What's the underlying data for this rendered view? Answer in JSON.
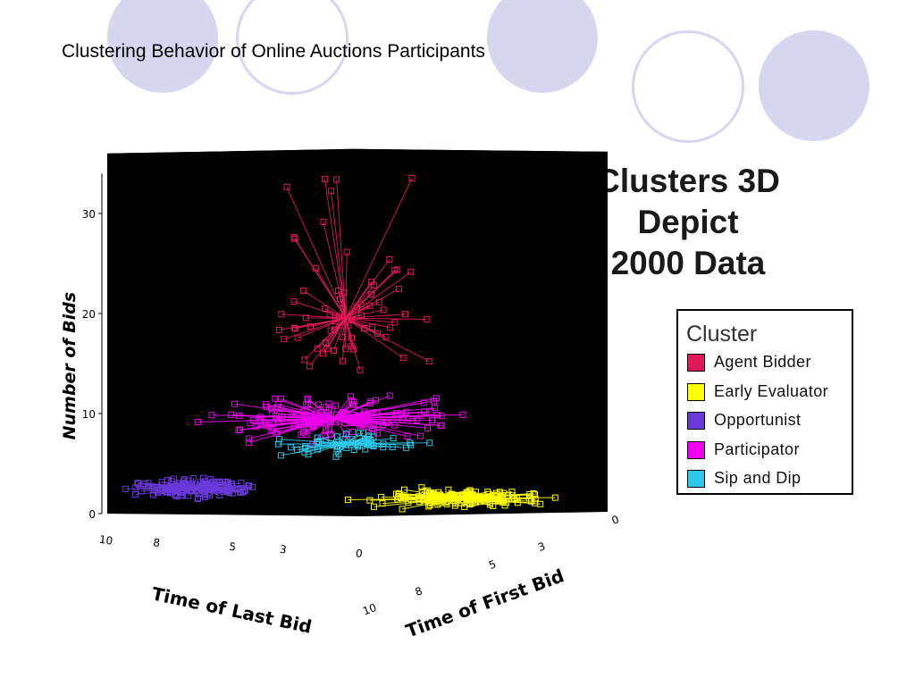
{
  "slide": {
    "title": "Clustering Behavior of Online Auctions Participants",
    "side_title_lines": [
      "Clusters 3D",
      "Depict",
      "2000 Data"
    ]
  },
  "legend": {
    "title": "Cluster",
    "items": [
      {
        "label": "Agent Bidder",
        "color": "#e0195a"
      },
      {
        "label": "Early Evaluator",
        "color": "#ffff00"
      },
      {
        "label": "Opportunist",
        "color": "#6a3ad9"
      },
      {
        "label": "Participator",
        "color": "#ee00ee"
      },
      {
        "label": "Sip and Dip",
        "color": "#2ec8e8"
      }
    ]
  },
  "chart_data": {
    "type": "scatter",
    "subtype": "3d-scatter-with-centroid-spikes",
    "ylabel": "Number of Bids",
    "xlabel": "Time of Last Bid",
    "zlabel": "Time of First Bid",
    "y_ticks": [
      "0",
      "10",
      "20",
      "30"
    ],
    "x_ticks": [
      "10",
      "8",
      "5",
      "3",
      "0"
    ],
    "z_ticks": [
      "10",
      "8",
      "5",
      "3",
      "0"
    ],
    "ylim": [
      0,
      35
    ],
    "xlim": [
      0,
      10
    ],
    "zlim": [
      0,
      10
    ],
    "background": "#000000",
    "legend_title": "Cluster",
    "legend_position": "right",
    "series": [
      {
        "name": "Agent Bidder",
        "color": "#e0195a",
        "centroid": {
          "last": 4.5,
          "first": 6.0,
          "bids": 19.5
        },
        "points": 70
      },
      {
        "name": "Participator",
        "color": "#ee00ee",
        "centroid": {
          "last": 4.5,
          "first": 6.5,
          "bids": 9.5
        },
        "points": 150
      },
      {
        "name": "Sip and Dip",
        "color": "#2ec8e8",
        "centroid": {
          "last": 4.0,
          "first": 6.5,
          "bids": 7.0
        },
        "points": 60
      },
      {
        "name": "Opportunist",
        "color": "#6a3ad9",
        "centroid": {
          "last": 8.0,
          "first": 8.5,
          "bids": 2.5
        },
        "points": 140
      },
      {
        "name": "Early Evaluator",
        "color": "#ffff00",
        "centroid": {
          "last": 2.0,
          "first": 4.0,
          "bids": 1.5
        },
        "points": 160
      }
    ]
  }
}
